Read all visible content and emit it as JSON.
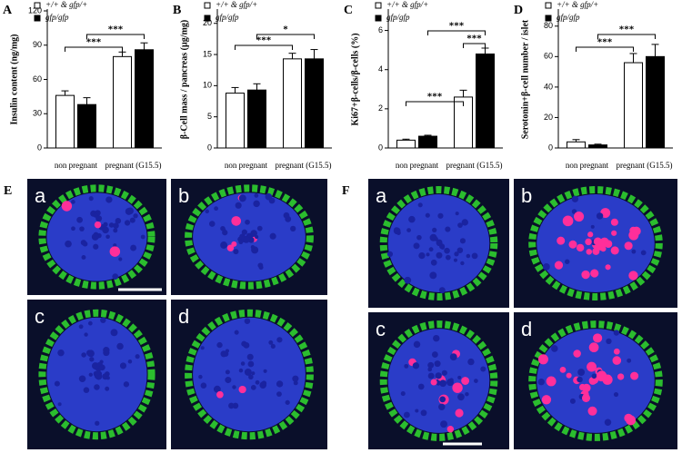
{
  "chart_data": [
    {
      "type": "bar",
      "title": "A",
      "ylabel": "Insulin content  (ng/mg)",
      "categories": [
        "non pregnant",
        "pregnant (G15.5)"
      ],
      "series": [
        {
          "name": "+/+ & gfp/+",
          "color": "#ffffff",
          "values": [
            46,
            80
          ],
          "errors": [
            4,
            4
          ]
        },
        {
          "name": "gfp/gfp",
          "color": "#000000",
          "values": [
            38,
            86
          ],
          "errors": [
            6,
            6
          ]
        }
      ],
      "ylim": [
        0,
        120
      ],
      "yticks": [
        0,
        30,
        60,
        90,
        120
      ],
      "annotations": [
        "***",
        "***"
      ]
    },
    {
      "type": "bar",
      "title": "B",
      "ylabel": "β-Cell mass / pancreas (µg/mg)",
      "categories": [
        "non pregnant",
        "pregnant (G15.5)"
      ],
      "series": [
        {
          "name": "+/+ & gfp/+",
          "color": "#ffffff",
          "values": [
            8.8,
            14.3
          ],
          "errors": [
            0.9,
            0.9
          ]
        },
        {
          "name": "gfp/gfp",
          "color": "#000000",
          "values": [
            9.3,
            14.3
          ],
          "errors": [
            1.0,
            1.5
          ]
        }
      ],
      "ylim": [
        0,
        22
      ],
      "yticks": [
        0,
        5,
        10,
        15,
        20
      ],
      "annotations": [
        "***",
        "*"
      ]
    },
    {
      "type": "bar",
      "title": "C",
      "ylabel": "Ki67+β-cells/β-cells (%)",
      "categories": [
        "non pregnant",
        "pregnant (G15.5)"
      ],
      "series": [
        {
          "name": "+/+ & gfp/+",
          "color": "#ffffff",
          "values": [
            0.4,
            2.6
          ],
          "errors": [
            0.05,
            0.35
          ]
        },
        {
          "name": "gfp/gfp",
          "color": "#000000",
          "values": [
            0.6,
            4.8
          ],
          "errors": [
            0.05,
            0.3
          ]
        }
      ],
      "ylim": [
        0,
        7
      ],
      "yticks": [
        0,
        2,
        4,
        6
      ],
      "annotations": [
        "***",
        "***",
        "***"
      ]
    },
    {
      "type": "bar",
      "title": "D",
      "ylabel": "Serotonin+β-cell number / islet",
      "categories": [
        "non pregnant",
        "pregnant (G15.5)"
      ],
      "series": [
        {
          "name": "+/+ & gfp/+",
          "color": "#ffffff",
          "values": [
            4,
            56
          ],
          "errors": [
            1.5,
            6
          ]
        },
        {
          "name": "gfp/gfp",
          "color": "#000000",
          "values": [
            2,
            60
          ],
          "errors": [
            0.5,
            8
          ]
        }
      ],
      "ylim": [
        0,
        90
      ],
      "yticks": [
        0,
        20,
        40,
        60,
        80
      ],
      "annotations": [
        "***",
        "***"
      ]
    }
  ],
  "images": {
    "E": {
      "label": "E",
      "panels": [
        "a",
        "b",
        "c",
        "d"
      ]
    },
    "F": {
      "label": "F",
      "panels": [
        "a",
        "b",
        "c",
        "d"
      ]
    }
  }
}
